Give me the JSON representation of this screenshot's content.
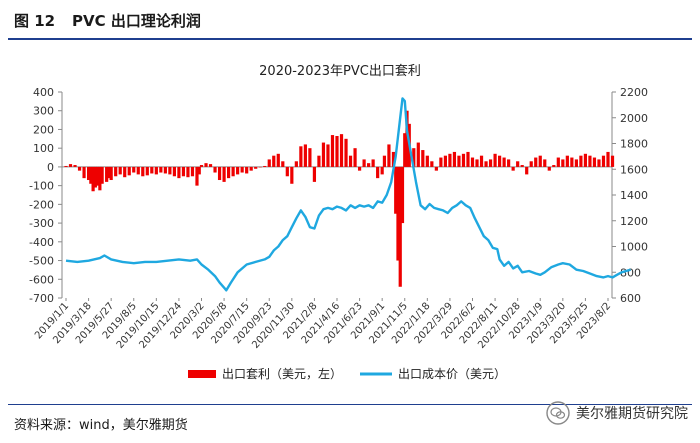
{
  "header": {
    "figure_number": "图 12",
    "figure_title": "PVC 出口理论利润"
  },
  "footer": {
    "source": "资料来源：wind，美尔雅期货",
    "watermark": "美尔雅期货研究院"
  },
  "colors": {
    "profit": "#ee0000",
    "cost": "#1fa8e0",
    "rule": "#1f3f8f"
  },
  "chart_data": {
    "type": "bar+line",
    "title": "2020-2023年PVC出口套利",
    "categories": [
      "2019/1/1",
      "2019/3/18",
      "2019/5/27",
      "2019/8/5",
      "2019/10/15",
      "2019/12/24",
      "2020/3/2",
      "2020/5/8",
      "2020/7/15",
      "2020/9/23",
      "2020/11/30",
      "2021/2/8",
      "2021/4/16",
      "2021/6/23",
      "2021/9/1",
      "2021/11/5",
      "2022/1/18",
      "2022/3/29",
      "2022/6/2",
      "2022/8/11",
      "2022/10/28",
      "2023/1/9",
      "2023/3/20",
      "2023/5/25",
      "2023/8/2"
    ],
    "left_axis": {
      "min": -700,
      "max": 400,
      "ticks": [
        400,
        300,
        200,
        100,
        0,
        -100,
        -200,
        -300,
        -400,
        -500,
        -600,
        -700
      ]
    },
    "right_axis": {
      "min": 600,
      "max": 2200,
      "ticks": [
        2200,
        2000,
        1800,
        1600,
        1400,
        1200,
        1000,
        800,
        600
      ]
    },
    "series": [
      {
        "name": "出口套利（美元，左）",
        "kind": "bar",
        "axis": "left",
        "points": [
          [
            0,
            5
          ],
          [
            0.2,
            15
          ],
          [
            0.4,
            10
          ],
          [
            0.6,
            -20
          ],
          [
            0.8,
            -60
          ],
          [
            1,
            -70
          ],
          [
            1.1,
            -90
          ],
          [
            1.2,
            -130
          ],
          [
            1.3,
            -110
          ],
          [
            1.4,
            -100
          ],
          [
            1.5,
            -125
          ],
          [
            1.6,
            -90
          ],
          [
            1.8,
            -80
          ],
          [
            1.9,
            -60
          ],
          [
            2,
            -70
          ],
          [
            2.2,
            -50
          ],
          [
            2.4,
            -40
          ],
          [
            2.6,
            -55
          ],
          [
            2.8,
            -45
          ],
          [
            3,
            -30
          ],
          [
            3.2,
            -40
          ],
          [
            3.4,
            -50
          ],
          [
            3.6,
            -45
          ],
          [
            3.8,
            -35
          ],
          [
            4,
            -40
          ],
          [
            4.2,
            -30
          ],
          [
            4.4,
            -35
          ],
          [
            4.6,
            -40
          ],
          [
            4.8,
            -50
          ],
          [
            5,
            -60
          ],
          [
            5.2,
            -50
          ],
          [
            5.4,
            -55
          ],
          [
            5.6,
            -50
          ],
          [
            5.8,
            -100
          ],
          [
            5.9,
            -40
          ],
          [
            6,
            10
          ],
          [
            6.2,
            20
          ],
          [
            6.4,
            15
          ],
          [
            6.6,
            -30
          ],
          [
            6.8,
            -70
          ],
          [
            7,
            -80
          ],
          [
            7.2,
            -60
          ],
          [
            7.4,
            -50
          ],
          [
            7.6,
            -40
          ],
          [
            7.8,
            -30
          ],
          [
            8,
            -35
          ],
          [
            8.2,
            -20
          ],
          [
            8.4,
            -10
          ],
          [
            8.6,
            0
          ],
          [
            8.8,
            5
          ],
          [
            9,
            40
          ],
          [
            9.2,
            60
          ],
          [
            9.4,
            70
          ],
          [
            9.6,
            30
          ],
          [
            9.8,
            -50
          ],
          [
            10,
            -90
          ],
          [
            10.2,
            30
          ],
          [
            10.4,
            110
          ],
          [
            10.6,
            120
          ],
          [
            10.8,
            100
          ],
          [
            11,
            -80
          ],
          [
            11.2,
            60
          ],
          [
            11.4,
            130
          ],
          [
            11.6,
            120
          ],
          [
            11.8,
            170
          ],
          [
            12,
            165
          ],
          [
            12.2,
            175
          ],
          [
            12.4,
            150
          ],
          [
            12.6,
            60
          ],
          [
            12.8,
            100
          ],
          [
            13,
            -20
          ],
          [
            13.2,
            40
          ],
          [
            13.4,
            20
          ],
          [
            13.6,
            40
          ],
          [
            13.8,
            -60
          ],
          [
            14,
            -40
          ],
          [
            14.1,
            60
          ],
          [
            14.3,
            120
          ],
          [
            14.5,
            80
          ],
          [
            14.6,
            -250
          ],
          [
            14.7,
            -500
          ],
          [
            14.8,
            -640
          ],
          [
            14.9,
            -300
          ],
          [
            15,
            180
          ],
          [
            15.1,
            300
          ],
          [
            15.2,
            230
          ],
          [
            15.4,
            100
          ],
          [
            15.6,
            130
          ],
          [
            15.8,
            90
          ],
          [
            16,
            60
          ],
          [
            16.2,
            30
          ],
          [
            16.4,
            -20
          ],
          [
            16.6,
            50
          ],
          [
            16.8,
            60
          ],
          [
            17,
            70
          ],
          [
            17.2,
            80
          ],
          [
            17.4,
            60
          ],
          [
            17.6,
            70
          ],
          [
            17.8,
            80
          ],
          [
            18,
            50
          ],
          [
            18.2,
            40
          ],
          [
            18.4,
            60
          ],
          [
            18.6,
            30
          ],
          [
            18.8,
            40
          ],
          [
            19,
            70
          ],
          [
            19.2,
            60
          ],
          [
            19.4,
            50
          ],
          [
            19.6,
            40
          ],
          [
            19.8,
            -20
          ],
          [
            20,
            30
          ],
          [
            20.2,
            10
          ],
          [
            20.4,
            -40
          ],
          [
            20.6,
            30
          ],
          [
            20.8,
            50
          ],
          [
            21,
            60
          ],
          [
            21.2,
            40
          ],
          [
            21.4,
            -20
          ],
          [
            21.6,
            10
          ],
          [
            21.8,
            50
          ],
          [
            22,
            40
          ],
          [
            22.2,
            60
          ],
          [
            22.4,
            50
          ],
          [
            22.6,
            40
          ],
          [
            22.8,
            60
          ],
          [
            23,
            70
          ],
          [
            23.2,
            60
          ],
          [
            23.4,
            50
          ],
          [
            23.6,
            40
          ],
          [
            23.8,
            60
          ],
          [
            24,
            80
          ],
          [
            24.2,
            60
          ]
        ]
      },
      {
        "name": "出口成本价（美元）",
        "kind": "line",
        "axis": "right",
        "points": [
          [
            0,
            890
          ],
          [
            0.5,
            880
          ],
          [
            1,
            890
          ],
          [
            1.5,
            910
          ],
          [
            1.7,
            930
          ],
          [
            2,
            900
          ],
          [
            2.5,
            880
          ],
          [
            3,
            870
          ],
          [
            3.5,
            880
          ],
          [
            4,
            880
          ],
          [
            4.5,
            890
          ],
          [
            5,
            900
          ],
          [
            5.5,
            890
          ],
          [
            5.8,
            900
          ],
          [
            6,
            860
          ],
          [
            6.3,
            820
          ],
          [
            6.6,
            770
          ],
          [
            6.8,
            720
          ],
          [
            7,
            680
          ],
          [
            7.1,
            660
          ],
          [
            7.3,
            720
          ],
          [
            7.6,
            800
          ],
          [
            8,
            860
          ],
          [
            8.4,
            880
          ],
          [
            8.8,
            900
          ],
          [
            9,
            920
          ],
          [
            9.2,
            970
          ],
          [
            9.4,
            1000
          ],
          [
            9.6,
            1050
          ],
          [
            9.8,
            1080
          ],
          [
            10,
            1150
          ],
          [
            10.2,
            1220
          ],
          [
            10.4,
            1280
          ],
          [
            10.6,
            1230
          ],
          [
            10.8,
            1150
          ],
          [
            11,
            1140
          ],
          [
            11.2,
            1240
          ],
          [
            11.4,
            1290
          ],
          [
            11.6,
            1300
          ],
          [
            11.8,
            1290
          ],
          [
            12,
            1310
          ],
          [
            12.2,
            1300
          ],
          [
            12.4,
            1280
          ],
          [
            12.6,
            1320
          ],
          [
            12.8,
            1300
          ],
          [
            13,
            1320
          ],
          [
            13.2,
            1310
          ],
          [
            13.4,
            1320
          ],
          [
            13.6,
            1300
          ],
          [
            13.8,
            1350
          ],
          [
            14,
            1340
          ],
          [
            14.2,
            1400
          ],
          [
            14.4,
            1500
          ],
          [
            14.6,
            1700
          ],
          [
            14.8,
            2000
          ],
          [
            14.9,
            2150
          ],
          [
            15,
            2130
          ],
          [
            15.1,
            1900
          ],
          [
            15.3,
            1700
          ],
          [
            15.5,
            1500
          ],
          [
            15.7,
            1320
          ],
          [
            15.9,
            1290
          ],
          [
            16.1,
            1330
          ],
          [
            16.3,
            1300
          ],
          [
            16.5,
            1290
          ],
          [
            16.7,
            1280
          ],
          [
            16.9,
            1260
          ],
          [
            17.1,
            1300
          ],
          [
            17.3,
            1320
          ],
          [
            17.5,
            1350
          ],
          [
            17.7,
            1320
          ],
          [
            17.9,
            1300
          ],
          [
            18.1,
            1220
          ],
          [
            18.3,
            1150
          ],
          [
            18.5,
            1080
          ],
          [
            18.7,
            1050
          ],
          [
            18.9,
            990
          ],
          [
            19.1,
            980
          ],
          [
            19.2,
            900
          ],
          [
            19.4,
            850
          ],
          [
            19.6,
            880
          ],
          [
            19.8,
            830
          ],
          [
            20,
            850
          ],
          [
            20.2,
            800
          ],
          [
            20.5,
            810
          ],
          [
            20.8,
            790
          ],
          [
            21,
            780
          ],
          [
            21.2,
            800
          ],
          [
            21.5,
            840
          ],
          [
            21.8,
            860
          ],
          [
            22,
            870
          ],
          [
            22.3,
            860
          ],
          [
            22.6,
            820
          ],
          [
            22.9,
            810
          ],
          [
            23.2,
            790
          ],
          [
            23.5,
            770
          ],
          [
            23.8,
            760
          ],
          [
            24,
            770
          ],
          [
            24.2,
            760
          ],
          [
            24.4,
            780
          ],
          [
            24.6,
            800
          ],
          [
            24.8,
            810
          ],
          [
            25,
            820
          ]
        ]
      }
    ],
    "legend_position": "bottom"
  }
}
